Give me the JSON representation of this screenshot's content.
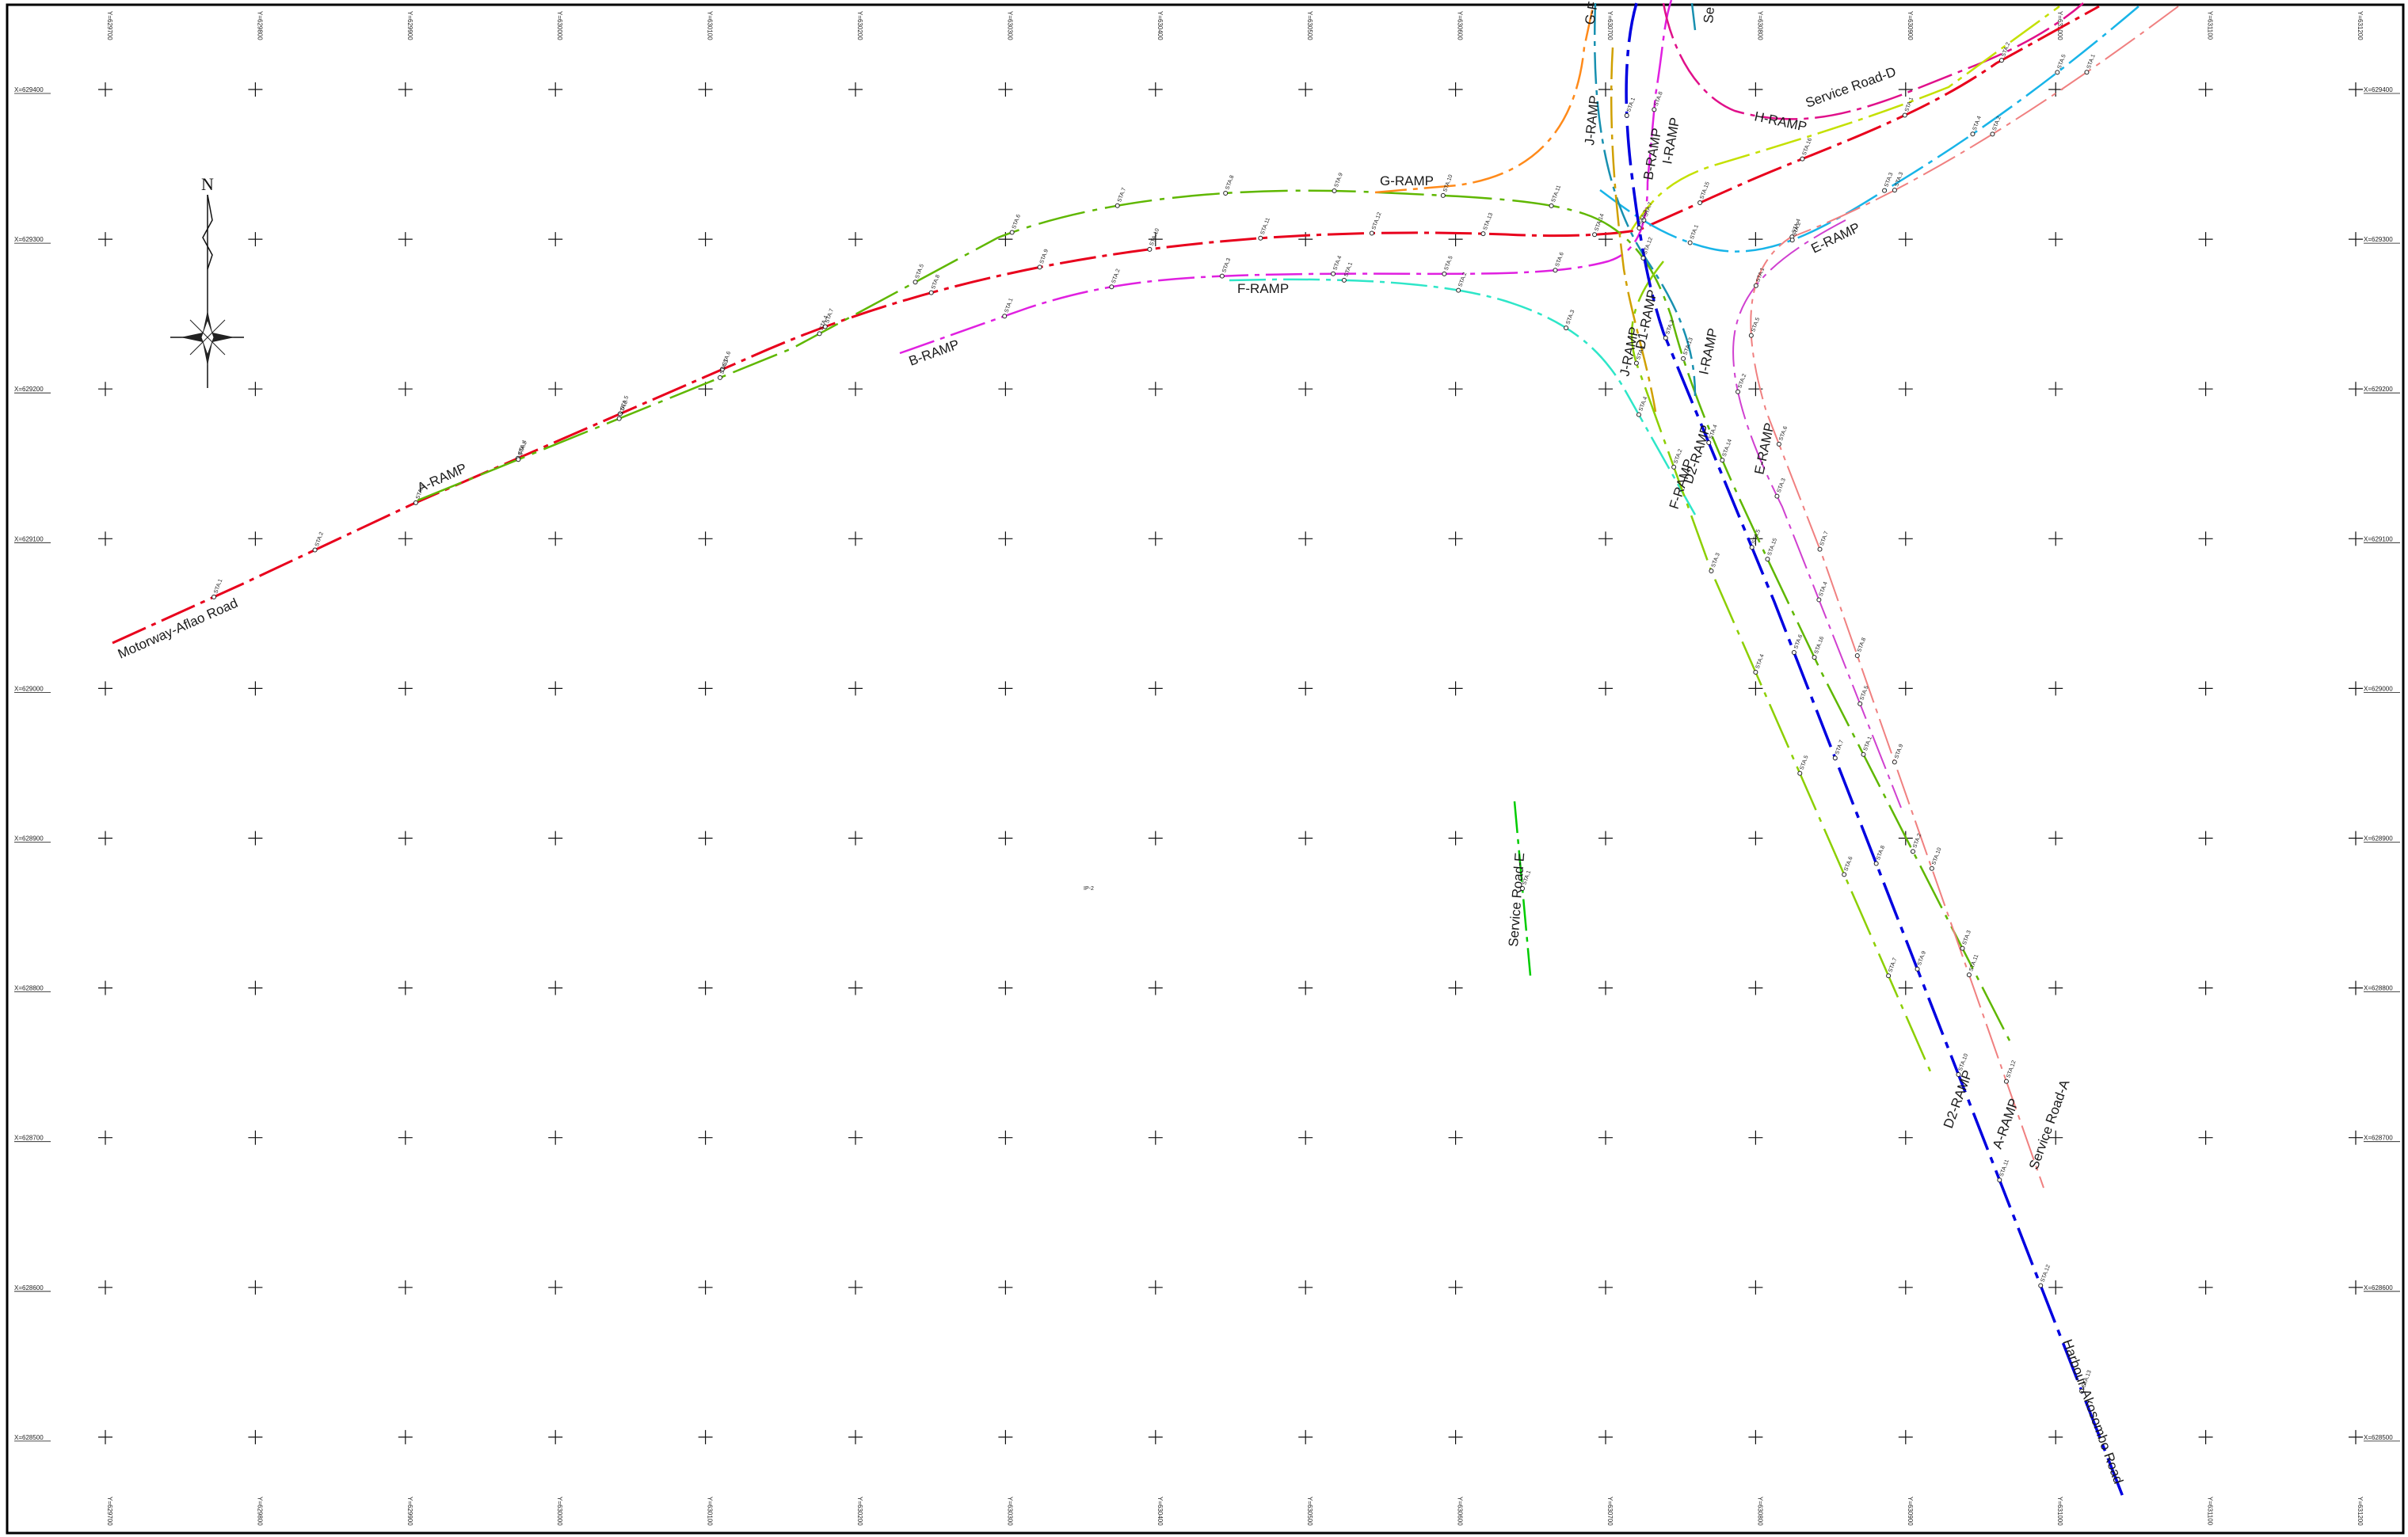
{
  "drawing": {
    "north_arrow_label": "N",
    "stray_text": "IP-2"
  },
  "grid": {
    "columns": [
      "Y=629700",
      "Y=629800",
      "Y=629900",
      "Y=630000",
      "Y=630100",
      "Y=630200",
      "Y=630300",
      "Y=630400",
      "Y=630500",
      "Y=630600",
      "Y=630700",
      "Y=630800",
      "Y=630900",
      "Y=631000",
      "Y=631100",
      "Y=631200"
    ],
    "rows": [
      "X=629400",
      "X=629300",
      "X=629200",
      "X=629100",
      "X=629000",
      "X=628900",
      "X=628800",
      "X=628700",
      "X=628600",
      "X=628500"
    ]
  },
  "roads": [
    {
      "id": "motorway",
      "label": "Motorway-Aflao Road",
      "color": "#e8001c"
    },
    {
      "id": "a-ramp",
      "label": "A-RAMP",
      "color": "#5fb700"
    },
    {
      "id": "a-ramp-south",
      "label": "A-RAMP",
      "color": "#5fb700"
    },
    {
      "id": "b-ramp",
      "label": "B-RAMP",
      "color": "#e020e0"
    },
    {
      "id": "b-ramp-north",
      "label": "B-RAMP",
      "color": "#e020e0"
    },
    {
      "id": "f-ramp",
      "label": "F-RAMP",
      "color": "#2ee6c8"
    },
    {
      "id": "f-ramp-south",
      "label": "F-RAMP",
      "color": "#2ee6c8"
    },
    {
      "id": "g-ramp",
      "label": "G-RAMP",
      "color": "#6aa800"
    },
    {
      "id": "g-ramp-north",
      "label": "G-F",
      "color": "#ff8a1a"
    },
    {
      "id": "h-ramp",
      "label": "H-RAMP",
      "color": "#e0108a"
    },
    {
      "id": "service-road-d",
      "label": "Service Road-D",
      "color": "#c4e000"
    },
    {
      "id": "e-ramp",
      "label": "E-RAMP",
      "color": "#18b4e8"
    },
    {
      "id": "e-ramp-south",
      "label": "E-RAMP",
      "color": "#d040d0"
    },
    {
      "id": "i-ramp",
      "label": "I-RAMP",
      "color": "#1890b0"
    },
    {
      "id": "i-ramp-south",
      "label": "I-RAMP",
      "color": "#1890b0"
    },
    {
      "id": "j-ramp",
      "label": "J-RAMP",
      "color": "#d0a000"
    },
    {
      "id": "j-ramp-south",
      "label": "J-RAMP",
      "color": "#d0a000"
    },
    {
      "id": "d1-ramp",
      "label": "D1-RAMP",
      "color": "#0000e0"
    },
    {
      "id": "d2-ramp",
      "label": "D2-RAMP",
      "color": "#8ccf00"
    },
    {
      "id": "d2-ramp-south",
      "label": "D2-RAMP",
      "color": "#8ccf00"
    },
    {
      "id": "service-road-a",
      "label": "Service Road-A",
      "color": "#f08080"
    },
    {
      "id": "harbour",
      "label": "Harbour-Akosombo Road",
      "color": "#0000e0"
    },
    {
      "id": "service-road-e",
      "label": "Service Road-E",
      "color": "#00cc00"
    },
    {
      "id": "service-road-n",
      "label": "Se",
      "color": "#1890b0"
    }
  ],
  "stations": [
    "STA.1",
    "STA.2",
    "STA.3",
    "STA.4",
    "STA.5",
    "STA.6",
    "STA.7",
    "STA.8",
    "STA.9",
    "STA.10",
    "STA.11",
    "STA.12",
    "STA.13",
    "STA.14",
    "STA.15",
    "STA.16"
  ]
}
